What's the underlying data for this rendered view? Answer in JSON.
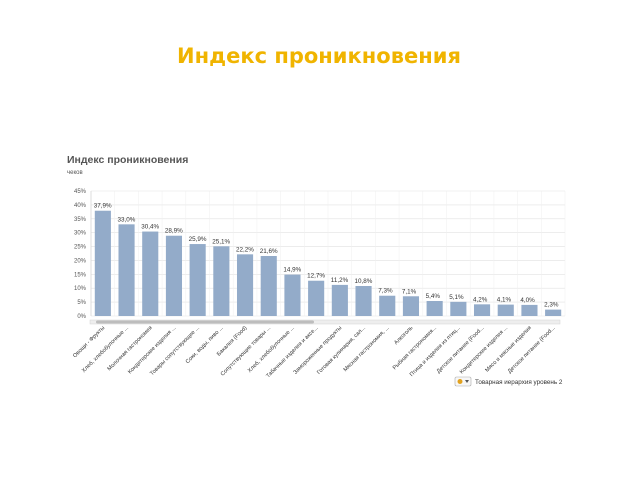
{
  "slide": {
    "title": "Индекс проникновения"
  },
  "chart_data": {
    "type": "bar",
    "title": "Индекс проникновения",
    "ylabel": "чеков",
    "ylim": [
      0,
      45
    ],
    "yticks": [
      "0%",
      "5%",
      "10%",
      "15%",
      "20%",
      "25%",
      "30%",
      "35%",
      "40%",
      "45%"
    ],
    "grid": true,
    "bar_color": "#93abc9",
    "categories": [
      "Овощи - Фрукты",
      "Хлеб, хлебобулочные ...",
      "Молочная гастрономия",
      "Кондитерские изделия ...",
      "Товары сопутствующие ...",
      "Соки, воды, пиво ...",
      "Бакалея (Food)",
      "Сопутствующие товары ...",
      "Хлеб, хлебобулочные ...",
      "Табачные изделия и аксе...",
      "Замороженные продукты",
      "Готовая кулинария, сал...",
      "Мясная гастрономия, ...",
      "Алкоголь",
      "Рыбная гастрономия...",
      "Птица и изделия из птиц...",
      "Детское питание (Food...",
      "Кондитерские изделия ...",
      "Мясо и мясные изделия",
      "Детское питание (Food..."
    ],
    "values": [
      37.9,
      33.0,
      30.4,
      28.9,
      25.9,
      25.1,
      22.2,
      21.6,
      14.9,
      12.7,
      11.2,
      10.8,
      7.3,
      7.1,
      5.4,
      5.1,
      4.2,
      4.1,
      4.0,
      2.3
    ],
    "value_labels": [
      "37,9%",
      "33,0%",
      "30,4%",
      "28,9%",
      "25,9%",
      "25,1%",
      "22,2%",
      "21,6%",
      "14,9%",
      "12,7%",
      "11,2%",
      "10,8%",
      "7,3%",
      "7,1%",
      "5,4%",
      "5,1%",
      "4,2%",
      "4,1%",
      "4,0%",
      "2,3%"
    ],
    "legend": {
      "text": "Товарная иерархия уровень 2",
      "placement": "bottom-right"
    }
  }
}
